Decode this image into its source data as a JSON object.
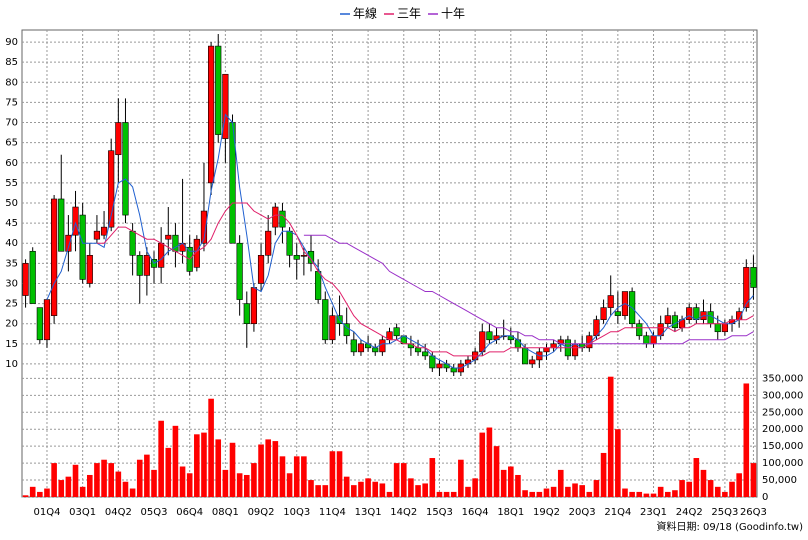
{
  "chart_data": {
    "type": "candlestick",
    "footnote": "資料日期: 09/18 (Goodinfo.tw)",
    "categories": [
      null,
      null,
      null,
      "01Q4",
      null,
      null,
      null,
      null,
      "03Q1",
      null,
      null,
      null,
      null,
      "04Q2",
      null,
      null,
      null,
      null,
      "05Q3",
      null,
      null,
      null,
      null,
      "06Q4",
      null,
      null,
      null,
      null,
      "08Q1",
      null,
      null,
      null,
      null,
      "09Q2",
      null,
      null,
      null,
      null,
      "10Q3",
      null,
      null,
      null,
      null,
      "11Q4",
      null,
      null,
      null,
      null,
      "13Q1",
      null,
      null,
      null,
      null,
      "14Q2",
      null,
      null,
      null,
      null,
      "15Q3",
      null,
      null,
      null,
      null,
      "16Q4",
      null,
      null,
      null,
      null,
      "18Q1",
      null,
      null,
      null,
      null,
      "19Q2",
      null,
      null,
      null,
      null,
      "20Q3",
      null,
      null,
      null,
      null,
      "21Q4",
      null,
      null,
      null,
      null,
      "23Q1",
      null,
      null,
      null,
      null,
      "24Q2",
      null,
      null,
      null,
      null,
      "25Q3",
      null,
      null,
      null,
      "26Q3"
    ],
    "open": [
      27,
      38,
      24,
      16,
      22,
      51,
      38,
      42,
      47,
      30,
      41,
      42,
      44,
      62,
      70,
      43,
      37,
      32,
      36,
      34,
      41,
      42,
      38,
      39,
      34,
      40,
      55,
      89,
      66,
      70,
      40,
      25,
      20,
      30,
      37,
      44,
      48,
      43,
      37,
      37,
      38,
      33,
      26,
      16,
      22,
      20,
      16,
      13,
      15,
      14,
      13,
      16,
      19,
      17,
      15,
      14,
      13,
      12,
      9,
      10,
      9,
      8,
      10,
      11,
      13,
      18,
      16,
      17,
      17,
      16,
      14,
      10,
      11,
      13,
      14,
      15,
      16,
      12,
      15,
      14,
      17,
      21,
      24,
      23,
      22,
      28,
      20,
      17,
      15,
      17,
      20,
      22,
      19,
      21,
      24,
      21,
      23,
      20,
      18,
      20,
      21,
      24,
      34
    ],
    "high": [
      36,
      39,
      24,
      26,
      52,
      62,
      47,
      53,
      50,
      40,
      47,
      48,
      66,
      76,
      76,
      45,
      38,
      39,
      38,
      44,
      49,
      45,
      56,
      42,
      42,
      60,
      90,
      92,
      82,
      72,
      42,
      28,
      30,
      40,
      47,
      50,
      50,
      44,
      40,
      39,
      42,
      36,
      28,
      24,
      27,
      24,
      18,
      16,
      17,
      15,
      17,
      19,
      20,
      17,
      17,
      16,
      15,
      13,
      11,
      11,
      10,
      11,
      12,
      14,
      20,
      20,
      19,
      21,
      19,
      18,
      15,
      12,
      14,
      15,
      16,
      17,
      17,
      16,
      17,
      18,
      22,
      26,
      32,
      28,
      28,
      29,
      21,
      18,
      18,
      22,
      24,
      23,
      22,
      25,
      25,
      26,
      25,
      22,
      21,
      22,
      24,
      36,
      37
    ],
    "low": [
      24,
      25,
      15,
      14,
      20,
      38,
      33,
      38,
      30,
      29,
      40,
      41,
      43,
      55,
      45,
      32,
      25,
      27,
      30,
      30,
      37,
      34,
      35,
      32,
      33,
      38,
      52,
      65,
      60,
      40,
      22,
      14,
      18,
      28,
      35,
      42,
      40,
      34,
      31,
      32,
      33,
      25,
      15,
      15,
      17,
      15,
      12,
      12,
      13,
      12,
      12,
      15,
      16,
      15,
      12,
      12,
      11,
      8,
      7,
      8,
      7,
      7,
      9,
      10,
      12,
      15,
      15,
      16,
      15,
      13,
      10,
      9,
      9,
      11,
      13,
      13,
      11,
      11,
      13,
      13,
      16,
      20,
      22,
      20,
      21,
      19,
      16,
      14,
      14,
      16,
      19,
      18,
      18,
      20,
      20,
      20,
      19,
      16,
      17,
      18,
      19,
      23,
      26
    ],
    "close": [
      35,
      25,
      16,
      26,
      51,
      38,
      42,
      49,
      31,
      37,
      43,
      44,
      63,
      70,
      47,
      37,
      32,
      37,
      34,
      40,
      42,
      38,
      40,
      33,
      41,
      48,
      89,
      67,
      82,
      40,
      26,
      20,
      29,
      37,
      43,
      49,
      44,
      37,
      36,
      37,
      35,
      26,
      16,
      22,
      20,
      17,
      13,
      15,
      14,
      13,
      16,
      18,
      17,
      15,
      14,
      13,
      12,
      9,
      10,
      9,
      8,
      10,
      11,
      13,
      18,
      16,
      17,
      17,
      16,
      14,
      10,
      11,
      13,
      14,
      15,
      16,
      12,
      15,
      14,
      17,
      21,
      24,
      27,
      22,
      28,
      20,
      17,
      15,
      17,
      20,
      22,
      19,
      21,
      24,
      21,
      23,
      20,
      18,
      20,
      21,
      23,
      34,
      29
    ],
    "up_color": "#ff0000",
    "down_color": "#00c000",
    "volume": [
      5000,
      30000,
      15000,
      25000,
      100000,
      50000,
      60000,
      95000,
      30000,
      65000,
      100000,
      110000,
      100000,
      75000,
      45000,
      25000,
      110000,
      125000,
      80000,
      225000,
      145000,
      210000,
      90000,
      70000,
      185000,
      190000,
      290000,
      170000,
      80000,
      160000,
      70000,
      65000,
      100000,
      155000,
      170000,
      165000,
      120000,
      70000,
      120000,
      120000,
      50000,
      35000,
      35000,
      135000,
      135000,
      60000,
      35000,
      45000,
      55000,
      45000,
      40000,
      15000,
      100000,
      100000,
      55000,
      35000,
      40000,
      115000,
      15000,
      15000,
      15000,
      110000,
      30000,
      55000,
      190000,
      205000,
      150000,
      80000,
      90000,
      65000,
      20000,
      15000,
      15000,
      25000,
      30000,
      80000,
      30000,
      40000,
      35000,
      15000,
      50000,
      130000,
      355000,
      200000,
      25000,
      15000,
      15000,
      10000,
      10000,
      30000,
      15000,
      20000,
      50000,
      45000,
      115000,
      80000,
      50000,
      30000,
      15000,
      45000,
      70000,
      335000,
      100000
    ],
    "volume_color": "#ff0000",
    "lines": [
      {
        "name": "年線",
        "color": "#2060d0",
        "values": [
          null,
          null,
          null,
          26,
          30,
          33,
          39,
          45,
          40,
          40,
          40,
          39,
          47,
          55,
          56,
          54,
          47,
          38,
          35,
          36,
          38,
          39,
          40,
          38,
          38,
          41,
          53,
          61,
          72,
          70,
          54,
          42,
          29,
          28,
          32,
          40,
          43,
          43,
          42,
          39,
          36,
          34,
          29,
          25,
          21,
          19,
          18,
          16,
          15,
          14,
          15,
          15,
          16,
          17,
          16,
          15,
          14,
          12,
          11,
          10,
          9,
          9,
          10,
          11,
          13,
          15,
          16,
          17,
          17,
          16,
          14,
          13,
          12,
          12,
          13,
          15,
          14,
          15,
          14,
          15,
          17,
          19,
          22,
          24,
          25,
          24,
          22,
          20,
          17,
          17,
          19,
          20,
          21,
          22,
          21,
          22,
          22,
          21,
          20,
          20,
          21,
          25,
          27
        ]
      },
      {
        "name": "三年",
        "color": "#e0206a",
        "values": [
          null,
          null,
          null,
          null,
          null,
          null,
          null,
          null,
          null,
          null,
          40,
          40,
          42,
          44,
          44,
          43,
          42,
          41,
          41,
          40,
          39,
          38,
          37,
          36,
          38,
          39,
          41,
          45,
          48,
          50,
          50,
          50,
          48,
          47,
          46,
          47,
          47,
          45,
          42,
          38,
          36,
          33,
          31,
          30,
          28,
          25,
          22,
          20,
          19,
          18,
          17,
          16,
          16,
          15,
          15,
          14,
          14,
          13,
          13,
          13,
          12,
          12,
          12,
          12,
          12,
          13,
          13,
          13,
          14,
          14,
          14,
          14,
          14,
          14,
          14,
          14,
          14,
          14,
          14,
          15,
          16,
          17,
          18,
          18,
          19,
          19,
          19,
          19,
          19,
          19,
          19,
          18,
          19,
          19,
          20,
          20,
          20,
          20,
          20,
          21,
          21,
          21,
          22
        ]
      },
      {
        "name": "十年",
        "color": "#9a30c8",
        "values": [
          null,
          null,
          null,
          null,
          null,
          null,
          null,
          null,
          null,
          null,
          null,
          null,
          null,
          null,
          null,
          null,
          null,
          null,
          null,
          null,
          null,
          null,
          null,
          null,
          null,
          null,
          null,
          null,
          null,
          null,
          null,
          null,
          null,
          null,
          null,
          null,
          null,
          null,
          null,
          42,
          42,
          42,
          42,
          41,
          40,
          40,
          39,
          38,
          37,
          36,
          35,
          33,
          32,
          31,
          30,
          29,
          28,
          28,
          27,
          26,
          25,
          24,
          23,
          22,
          21,
          20,
          19,
          19,
          18,
          18,
          17,
          17,
          16,
          16,
          16,
          15,
          15,
          15,
          15,
          15,
          15,
          15,
          15,
          15,
          15,
          15,
          15,
          15,
          15,
          15,
          15,
          15,
          15,
          16,
          16,
          16,
          16,
          16,
          16,
          17,
          17,
          17,
          18
        ]
      }
    ],
    "ylim": [
      7,
      93
    ],
    "yticks": [
      10,
      15,
      20,
      25,
      30,
      35,
      40,
      45,
      50,
      55,
      60,
      65,
      70,
      75,
      80,
      85,
      90
    ],
    "y2lim": [
      0,
      360000
    ],
    "y2ticks": [
      0,
      {
        "value": 50000,
        "label": "50,000"
      },
      {
        "value": 100000,
        "label": "100,000"
      },
      {
        "value": 150000,
        "label": "150,000"
      },
      {
        "value": 200000,
        "label": "200,000"
      },
      {
        "value": 250000,
        "label": "250,000"
      },
      {
        "value": 300000,
        "label": "300,000"
      },
      {
        "value": 350000,
        "label": "350,000"
      }
    ],
    "grid": true
  }
}
